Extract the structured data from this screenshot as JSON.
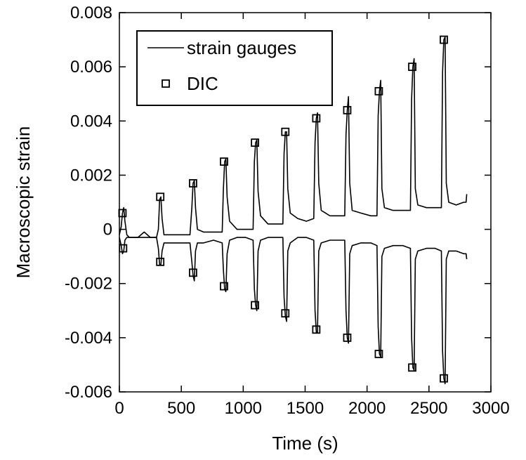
{
  "chart_data": {
    "type": "line",
    "xlabel": "Time (s)",
    "ylabel": "Macroscopic strain",
    "xlim": [
      0,
      3000
    ],
    "ylim": [
      -0.006,
      0.008
    ],
    "x_ticks": [
      0,
      500,
      1000,
      1500,
      2000,
      2500,
      3000
    ],
    "x_tick_labels": [
      "0",
      "500",
      "1000",
      "1500",
      "2000",
      "2500",
      "3000"
    ],
    "y_ticks": [
      -0.006,
      -0.004,
      -0.002,
      0,
      0.002,
      0.004,
      0.006,
      0.008
    ],
    "y_tick_labels": [
      "-0.006",
      "-0.004",
      "-0.002",
      "0",
      "0.002",
      "0.004",
      "0.006",
      "0.008"
    ],
    "grid": false,
    "legend_position": "top-left",
    "legend": {
      "line_label": "strain gauges",
      "marker_label": "DIC"
    },
    "series": [
      {
        "name": "strain gauges",
        "style": "line",
        "color": "#000000",
        "points": [
          [
            0,
            -0.0002
          ],
          [
            15,
            0.0001
          ],
          [
            25,
            0.0006
          ],
          [
            35,
            0.0008
          ],
          [
            45,
            0.0003
          ],
          [
            60,
            -0.0002
          ],
          [
            80,
            -0.0003
          ],
          [
            150,
            -0.0003
          ],
          [
            200,
            -0.0001
          ],
          [
            250,
            -0.0003
          ],
          [
            300,
            -0.0003
          ],
          [
            315,
            0.0
          ],
          [
            325,
            0.0011
          ],
          [
            335,
            0.0012
          ],
          [
            345,
            0.0004
          ],
          [
            360,
            -0.0002
          ],
          [
            420,
            -0.0002
          ],
          [
            500,
            -0.0002
          ],
          [
            570,
            -0.0002
          ],
          [
            585,
            0.0008
          ],
          [
            595,
            0.0017
          ],
          [
            605,
            0.0018
          ],
          [
            615,
            0.0008
          ],
          [
            630,
            0.0
          ],
          [
            680,
            -0.0001
          ],
          [
            760,
            -0.0001
          ],
          [
            830,
            -0.0001
          ],
          [
            840,
            0.0015
          ],
          [
            850,
            0.0025
          ],
          [
            860,
            0.0026
          ],
          [
            870,
            0.0012
          ],
          [
            890,
            0.0003
          ],
          [
            950,
            0.0
          ],
          [
            1020,
            0.0
          ],
          [
            1080,
            0.0
          ],
          [
            1090,
            0.0025
          ],
          [
            1100,
            0.0032
          ],
          [
            1110,
            0.0033
          ],
          [
            1120,
            0.0014
          ],
          [
            1140,
            0.0005
          ],
          [
            1200,
            0.0002
          ],
          [
            1270,
            0.0002
          ],
          [
            1320,
            0.0002
          ],
          [
            1330,
            0.0028
          ],
          [
            1340,
            0.0036
          ],
          [
            1350,
            0.0036
          ],
          [
            1360,
            0.0015
          ],
          [
            1380,
            0.0006
          ],
          [
            1440,
            0.0004
          ],
          [
            1510,
            0.0003
          ],
          [
            1570,
            0.0004
          ],
          [
            1580,
            0.0032
          ],
          [
            1590,
            0.0041
          ],
          [
            1600,
            0.0043
          ],
          [
            1610,
            0.0017
          ],
          [
            1630,
            0.0007
          ],
          [
            1700,
            0.0005
          ],
          [
            1770,
            0.0005
          ],
          [
            1820,
            0.0005
          ],
          [
            1830,
            0.0035
          ],
          [
            1840,
            0.0044
          ],
          [
            1850,
            0.0049
          ],
          [
            1860,
            0.0017
          ],
          [
            1880,
            0.0007
          ],
          [
            1950,
            0.0006
          ],
          [
            2030,
            0.0005
          ],
          [
            2080,
            0.0005
          ],
          [
            2090,
            0.0042
          ],
          [
            2100,
            0.0051
          ],
          [
            2110,
            0.0055
          ],
          [
            2120,
            0.0015
          ],
          [
            2140,
            0.0008
          ],
          [
            2210,
            0.0007
          ],
          [
            2290,
            0.0007
          ],
          [
            2350,
            0.0007
          ],
          [
            2360,
            0.0048
          ],
          [
            2370,
            0.006
          ],
          [
            2380,
            0.0063
          ],
          [
            2390,
            0.0015
          ],
          [
            2410,
            0.0009
          ],
          [
            2480,
            0.0008
          ],
          [
            2550,
            0.0008
          ],
          [
            2600,
            0.0008
          ],
          [
            2610,
            0.0058
          ],
          [
            2620,
            0.007
          ],
          [
            2630,
            0.0071
          ],
          [
            2640,
            0.0017
          ],
          [
            2660,
            0.001
          ],
          [
            2720,
            0.0009
          ],
          [
            2780,
            0.001
          ],
          [
            2800,
            0.001
          ],
          [
            2805,
            0.0013
          ]
        ]
      },
      {
        "name": "strain gauges",
        "style": "line",
        "color": "#000000",
        "points": [
          [
            0,
            -0.0003
          ],
          [
            15,
            -0.0006
          ],
          [
            25,
            -0.0009
          ],
          [
            35,
            -0.0008
          ],
          [
            45,
            -0.0004
          ],
          [
            60,
            -0.0003
          ],
          [
            150,
            -0.0003
          ],
          [
            250,
            -0.0003
          ],
          [
            300,
            -0.0003
          ],
          [
            315,
            -0.0007
          ],
          [
            325,
            -0.0013
          ],
          [
            335,
            -0.0013
          ],
          [
            345,
            -0.0008
          ],
          [
            360,
            -0.0005
          ],
          [
            420,
            -0.0005
          ],
          [
            500,
            -0.0005
          ],
          [
            570,
            -0.0005
          ],
          [
            585,
            -0.0012
          ],
          [
            595,
            -0.0017
          ],
          [
            605,
            -0.0019
          ],
          [
            615,
            -0.0008
          ],
          [
            630,
            -0.0005
          ],
          [
            680,
            -0.0005
          ],
          [
            760,
            -0.0004
          ],
          [
            830,
            -0.0005
          ],
          [
            840,
            -0.0015
          ],
          [
            850,
            -0.0022
          ],
          [
            860,
            -0.0023
          ],
          [
            870,
            -0.0009
          ],
          [
            890,
            -0.0004
          ],
          [
            950,
            -0.0003
          ],
          [
            1020,
            -0.0003
          ],
          [
            1080,
            -0.0004
          ],
          [
            1090,
            -0.0022
          ],
          [
            1100,
            -0.0028
          ],
          [
            1110,
            -0.003
          ],
          [
            1120,
            -0.0008
          ],
          [
            1140,
            -0.0004
          ],
          [
            1200,
            -0.0003
          ],
          [
            1270,
            -0.0003
          ],
          [
            1320,
            -0.0003
          ],
          [
            1330,
            -0.0025
          ],
          [
            1340,
            -0.0032
          ],
          [
            1350,
            -0.0034
          ],
          [
            1360,
            -0.0008
          ],
          [
            1380,
            -0.0005
          ],
          [
            1440,
            -0.0003
          ],
          [
            1510,
            -0.0003
          ],
          [
            1570,
            -0.0004
          ],
          [
            1580,
            -0.003
          ],
          [
            1590,
            -0.0038
          ],
          [
            1600,
            -0.0038
          ],
          [
            1610,
            -0.0008
          ],
          [
            1630,
            -0.0005
          ],
          [
            1700,
            -0.0004
          ],
          [
            1770,
            -0.0004
          ],
          [
            1820,
            -0.0004
          ],
          [
            1830,
            -0.003
          ],
          [
            1840,
            -0.004
          ],
          [
            1850,
            -0.0042
          ],
          [
            1860,
            -0.0009
          ],
          [
            1880,
            -0.0006
          ],
          [
            1950,
            -0.0005
          ],
          [
            2030,
            -0.0005
          ],
          [
            2080,
            -0.0006
          ],
          [
            2090,
            -0.0036
          ],
          [
            2100,
            -0.0046
          ],
          [
            2110,
            -0.0047
          ],
          [
            2120,
            -0.001
          ],
          [
            2140,
            -0.0007
          ],
          [
            2210,
            -0.0006
          ],
          [
            2290,
            -0.0006
          ],
          [
            2350,
            -0.0007
          ],
          [
            2360,
            -0.004
          ],
          [
            2370,
            -0.0051
          ],
          [
            2380,
            -0.0052
          ],
          [
            2390,
            -0.0011
          ],
          [
            2410,
            -0.0008
          ],
          [
            2480,
            -0.0007
          ],
          [
            2550,
            -0.0007
          ],
          [
            2600,
            -0.0008
          ],
          [
            2610,
            -0.0045
          ],
          [
            2620,
            -0.0055
          ],
          [
            2630,
            -0.0057
          ],
          [
            2640,
            -0.0011
          ],
          [
            2660,
            -0.0008
          ],
          [
            2720,
            -0.0008
          ],
          [
            2780,
            -0.0009
          ],
          [
            2800,
            -0.0009
          ],
          [
            2805,
            -0.0011
          ]
        ]
      },
      {
        "name": "DIC",
        "style": "marker",
        "marker": "open-square",
        "color": "#000000",
        "points": [
          [
            25,
            0.0006
          ],
          [
            30,
            -0.0007
          ],
          [
            330,
            0.0012
          ],
          [
            330,
            -0.0012
          ],
          [
            595,
            0.0017
          ],
          [
            595,
            -0.0016
          ],
          [
            845,
            0.0025
          ],
          [
            845,
            -0.0021
          ],
          [
            1095,
            0.0032
          ],
          [
            1095,
            -0.0028
          ],
          [
            1340,
            0.0036
          ],
          [
            1340,
            -0.0031
          ],
          [
            1590,
            0.0041
          ],
          [
            1590,
            -0.0037
          ],
          [
            1840,
            0.0044
          ],
          [
            1840,
            -0.004
          ],
          [
            2095,
            0.0051
          ],
          [
            2095,
            -0.0046
          ],
          [
            2365,
            0.006
          ],
          [
            2365,
            -0.0051
          ],
          [
            2620,
            0.007
          ],
          [
            2620,
            -0.0055
          ]
        ]
      }
    ]
  }
}
